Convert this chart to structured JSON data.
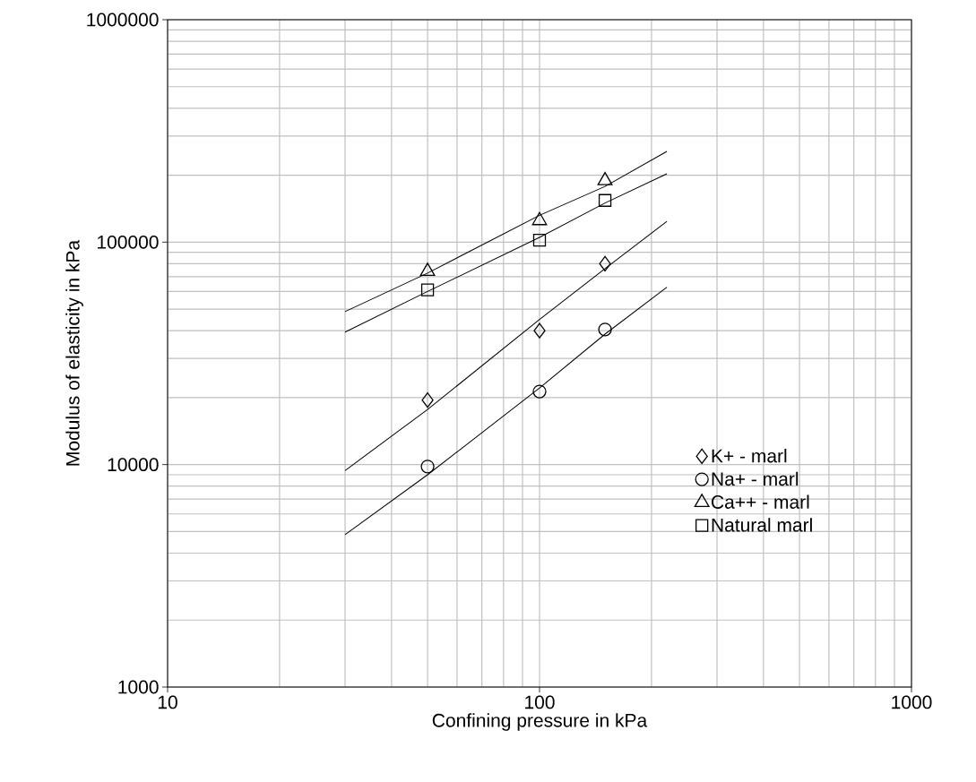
{
  "chart_data": {
    "type": "scatter",
    "xlabel": "Confining pressure in kPa",
    "ylabel": "Modulus of elasticity in kPa",
    "log": "xy",
    "grid": true,
    "legend": "right",
    "xlim": [
      10,
      1000
    ],
    "xticks": [
      10,
      100,
      1000
    ],
    "ylim": [
      1000,
      1000000
    ],
    "yticks": [
      1000,
      10000,
      100000,
      1000000
    ],
    "series": [
      {
        "name": "K+ - marl",
        "marker": "diamond",
        "color": "#000000",
        "x": [
          50,
          100,
          150
        ],
        "values": [
          19500,
          40000,
          80000
        ]
      },
      {
        "name": "Na+ - marl",
        "marker": "circle",
        "color": "#000000",
        "x": [
          50,
          100,
          150
        ],
        "values": [
          9800,
          21300,
          40500
        ]
      },
      {
        "name": "Ca++ - marl",
        "marker": "triangle",
        "color": "#000000",
        "x": [
          50,
          100,
          150
        ],
        "values": [
          74000,
          125000,
          189000
        ]
      },
      {
        "name": "Natural marl",
        "marker": "square",
        "color": "#000000",
        "x": [
          50,
          100,
          150
        ],
        "values": [
          61000,
          102000,
          154000
        ]
      },
      {
        "type": "line",
        "marker": "none",
        "line_style": "solid",
        "color": "#000000",
        "x": [
          30,
          50,
          100,
          150,
          220
        ],
        "values": [
          9400,
          17700,
          44900,
          76000,
          124000
        ]
      },
      {
        "type": "line",
        "marker": "none",
        "line_style": "solid",
        "color": "#000000",
        "x": [
          30,
          50,
          100,
          150,
          220
        ],
        "values": [
          4840,
          9000,
          22100,
          38600,
          62700
        ]
      },
      {
        "type": "line",
        "marker": "none",
        "line_style": "solid",
        "color": "#000000",
        "x": [
          30,
          50,
          100,
          150,
          220
        ],
        "values": [
          48700,
          72600,
          132000,
          178000,
          256000
        ]
      },
      {
        "type": "line",
        "marker": "none",
        "line_style": "solid",
        "color": "#000000",
        "x": [
          30,
          50,
          100,
          150,
          220
        ],
        "values": [
          39400,
          60000,
          105000,
          150000,
          203000
        ]
      }
    ]
  }
}
